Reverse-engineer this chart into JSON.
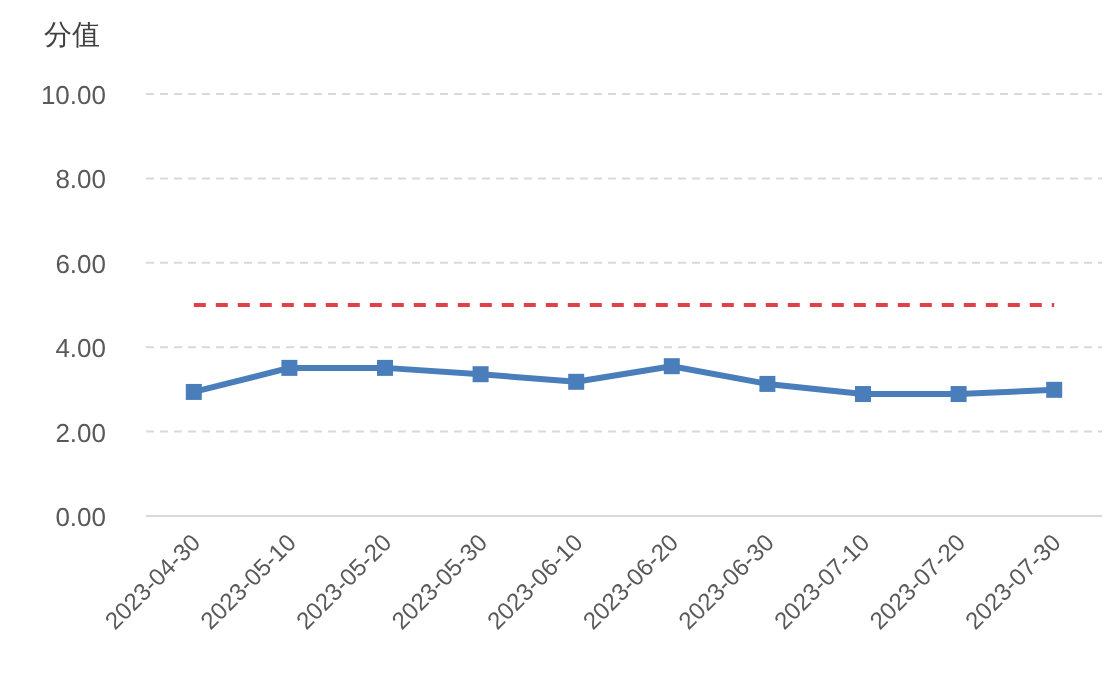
{
  "chart_data": {
    "type": "line",
    "ylabel": "分值",
    "categories": [
      "2023-04-30",
      "2023-05-10",
      "2023-05-20",
      "2023-05-30",
      "2023-06-10",
      "2023-06-20",
      "2023-06-30",
      "2023-07-10",
      "2023-07-20",
      "2023-07-30"
    ],
    "series": [
      {
        "color": "#4a7ebb",
        "values": [
          2.94,
          3.51,
          3.51,
          3.36,
          3.18,
          3.55,
          3.13,
          2.89,
          2.89,
          2.99
        ]
      }
    ],
    "ylim": [
      0,
      10
    ],
    "yticks": [
      {
        "value": 0,
        "label": "0.00"
      },
      {
        "value": 2,
        "label": "2.00"
      },
      {
        "value": 4,
        "label": "4.00"
      },
      {
        "value": 6,
        "label": "6.00"
      },
      {
        "value": 8,
        "label": "8.00"
      },
      {
        "value": 10,
        "label": "10.00"
      }
    ],
    "ref_lines": [
      {
        "axis": "y",
        "value": 5,
        "color": "#e0404a",
        "line_style": "dashed"
      }
    ],
    "grid": "y",
    "marker": "square",
    "line_style": "solid"
  }
}
